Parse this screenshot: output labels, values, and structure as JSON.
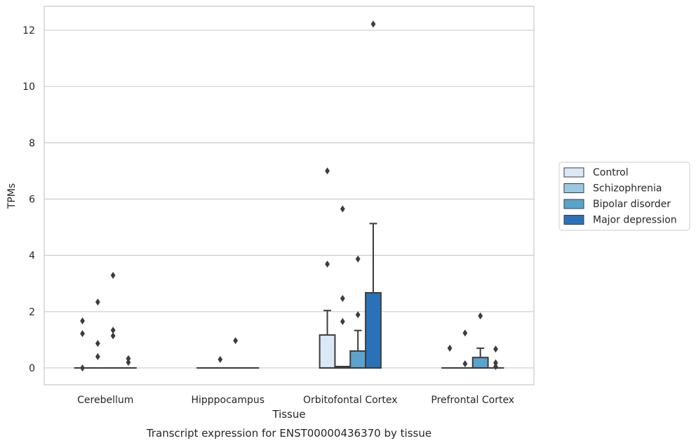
{
  "chart_data": {
    "type": "box",
    "title": "",
    "caption": "Transcript expression for ENST00000436370 by tissue",
    "xlabel": "Tissue",
    "ylabel": "TPMs",
    "ylim": [
      -0.6,
      12.85
    ],
    "yticks": [
      0,
      2,
      4,
      6,
      8,
      10,
      12
    ],
    "grid": true,
    "legend_position": "right",
    "categories": [
      "Cerebellum",
      "Hipppocampus",
      "Orbitofontal Cortex",
      "Prefrontal Cortex"
    ],
    "series": [
      {
        "name": "Control",
        "color": "#dbe9f6",
        "boxes": [
          {
            "q1": 0,
            "median": 0,
            "q3": 0,
            "whisker_low": 0,
            "whisker_high": 0,
            "outliers": [
              0,
              1.22,
              1.67
            ]
          },
          {
            "q1": 0,
            "median": 0,
            "q3": 0,
            "whisker_low": 0,
            "whisker_high": 0,
            "outliers": []
          },
          {
            "q1": 0,
            "median": 0,
            "q3": 1.17,
            "whisker_low": 0,
            "whisker_high": 2.04,
            "outliers": [
              3.69,
              7.0
            ]
          },
          {
            "q1": 0,
            "median": 0,
            "q3": 0,
            "whisker_low": 0,
            "whisker_high": 0,
            "outliers": [
              0.7
            ]
          }
        ]
      },
      {
        "name": "Schizophrenia",
        "color": "#9ac8e0",
        "boxes": [
          {
            "q1": 0,
            "median": 0,
            "q3": 0,
            "whisker_low": 0,
            "whisker_high": 0,
            "outliers": [
              0.4,
              0.87,
              2.34
            ]
          },
          {
            "q1": 0,
            "median": 0,
            "q3": 0,
            "whisker_low": 0,
            "whisker_high": 0,
            "outliers": [
              0.3
            ]
          },
          {
            "q1": 0,
            "median": 0,
            "q3": 0.05,
            "whisker_low": 0,
            "whisker_high": 0.05,
            "outliers": [
              1.65,
              2.47,
              5.65
            ]
          },
          {
            "q1": 0,
            "median": 0,
            "q3": 0,
            "whisker_low": 0,
            "whisker_high": 0,
            "outliers": [
              0.15,
              1.24
            ]
          }
        ]
      },
      {
        "name": "Bipolar disorder",
        "color": "#5ba3cf",
        "boxes": [
          {
            "q1": 0,
            "median": 0,
            "q3": 0,
            "whisker_low": 0,
            "whisker_high": 0,
            "outliers": [
              1.14,
              1.34,
              3.29
            ]
          },
          {
            "q1": 0,
            "median": 0,
            "q3": 0,
            "whisker_low": 0,
            "whisker_high": 0,
            "outliers": [
              0.97
            ]
          },
          {
            "q1": 0,
            "median": 0,
            "q3": 0.6,
            "whisker_low": 0,
            "whisker_high": 1.33,
            "outliers": [
              1.89,
              3.87
            ]
          },
          {
            "q1": 0,
            "median": 0,
            "q3": 0.37,
            "whisker_low": 0,
            "whisker_high": 0.7,
            "outliers": [
              1.85
            ]
          }
        ]
      },
      {
        "name": "Major depression",
        "color": "#2a72b8",
        "boxes": [
          {
            "q1": 0,
            "median": 0,
            "q3": 0,
            "whisker_low": 0,
            "whisker_high": 0,
            "outliers": [
              0.2,
              0.33
            ]
          },
          {
            "q1": 0,
            "median": 0,
            "q3": 0,
            "whisker_low": 0,
            "whisker_high": 0,
            "outliers": []
          },
          {
            "q1": 0,
            "median": 0,
            "q3": 2.67,
            "whisker_low": 0,
            "whisker_high": 5.13,
            "outliers": [
              12.22
            ]
          },
          {
            "q1": 0,
            "median": 0,
            "q3": 0,
            "whisker_low": 0,
            "whisker_high": 0,
            "outliers": [
              0.05,
              0.18,
              0.67
            ]
          }
        ]
      }
    ]
  }
}
